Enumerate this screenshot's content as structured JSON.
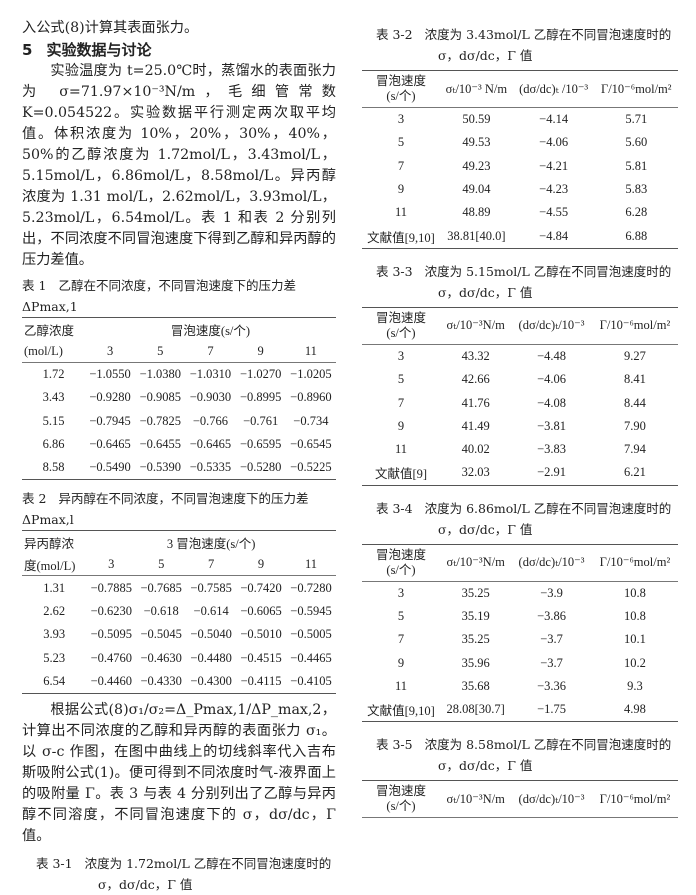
{
  "left": {
    "line1": "入公式(8)计算其表面张力。",
    "section": {
      "number": "5",
      "title": "实验数据与讨论"
    },
    "para1": "实验温度为 t=25.0℃时，蒸馏水的表面张力为 σ=71.97×10⁻³N/m，毛细管常数 K=0.054522。实验数据平行测定两次取平均值。体积浓度为 10%，20%，30%，40%，50%的乙醇浓度为 1.72mol/L，3.43mol/L，5.15mol/L，6.86mol/L，8.58mol/L。异丙醇浓度为 1.31 mol/L，2.62mol/L，3.93mol/L，5.23mol/L，6.54mol/L。表 1 和表 2 分别列出，不同浓度不同冒泡速度下得到乙醇和异丙醇的压力差值。",
    "para2": "根据公式(8)σ₁/σ₂=Δ_Pmax,1/ΔP_max,2，计算出不同浓度的乙醇和异丙醇的表面张力 σ₁。以 σ-c 作图，在图中曲线上的切线斜率代入吉布斯吸附公式(1)。便可得到不同浓度时气-液界面上的吸附量 Γ。表 3 与表 4 分别列出了乙醇与异丙醇不同溶度，不同冒泡速度下的 σ，dσ/dc，Γ 值。",
    "table1": {
      "caption_num": "表 1",
      "caption": "乙醇在不同浓度，不同冒泡速度下的压力差 ΔPmax,1",
      "row_header_1": "乙醇浓度",
      "row_header_2": "(mol/L)",
      "group_header": "冒泡速度(s/个)",
      "columns": [
        "3",
        "5",
        "7",
        "9",
        "11"
      ],
      "rows": [
        [
          "1.72",
          "−1.0550",
          "−1.0380",
          "−1.0310",
          "−1.0270",
          "−1.0205"
        ],
        [
          "3.43",
          "−0.9280",
          "−0.9085",
          "−0.9030",
          "−0.8995",
          "−0.8960"
        ],
        [
          "5.15",
          "−0.7945",
          "−0.7825",
          "−0.766",
          "−0.761",
          "−0.734"
        ],
        [
          "6.86",
          "−0.6465",
          "−0.6455",
          "−0.6465",
          "−0.6595",
          "−0.6545"
        ],
        [
          "8.58",
          "−0.5490",
          "−0.5390",
          "−0.5335",
          "−0.5280",
          "−0.5225"
        ]
      ]
    },
    "table2": {
      "caption_num": "表 2",
      "caption": "异丙醇在不同浓度，不同冒泡速度下的压力差 ΔPmax,l",
      "row_header_1": "异丙醇浓",
      "row_header_2": "度(mol/L)",
      "group_header": "3 冒泡速度(s/个)",
      "columns": [
        "3",
        "5",
        "7",
        "9",
        "11"
      ],
      "rows": [
        [
          "1.31",
          "−0.7885",
          "−0.7685",
          "−0.7585",
          "−0.7420",
          "−0.7280"
        ],
        [
          "2.62",
          "−0.6230",
          "−0.618",
          "−0.614",
          "−0.6065",
          "−0.5945"
        ],
        [
          "3.93",
          "−0.5095",
          "−0.5045",
          "−0.5040",
          "−0.5010",
          "−0.5005"
        ],
        [
          "5.23",
          "−0.4760",
          "−0.4630",
          "−0.4480",
          "−0.4515",
          "−0.4465"
        ],
        [
          "6.54",
          "−0.4460",
          "−0.4330",
          "−0.4300",
          "−0.4115",
          "−0.4105"
        ]
      ]
    },
    "table31": {
      "caption_num": "表 3-1",
      "caption": "浓度为 1.72mol/L 乙醇在不同冒泡速度时的",
      "caption_line2": "σ，dσ/dc，Γ 值"
    }
  },
  "right": {
    "tables": [
      {
        "caption_num": "表 3-2",
        "caption": "浓度为 3.43mol/L 乙醇在不同冒泡速度时的",
        "caption_line2": "σ，dσ/dc，Γ 值",
        "headers": [
          "冒泡速度\n(s/个)",
          "σₜ/10⁻³ N/m",
          "(dσ/dc)ₜ /10⁻³",
          "Γ/10⁻⁶mol/m²"
        ],
        "rows": [
          [
            "3",
            "50.59",
            "−4.14",
            "5.71"
          ],
          [
            "5",
            "49.53",
            "−4.06",
            "5.60"
          ],
          [
            "7",
            "49.23",
            "−4.21",
            "5.81"
          ],
          [
            "9",
            "49.04",
            "−4.23",
            "5.83"
          ],
          [
            "11",
            "48.89",
            "−4.55",
            "6.28"
          ],
          [
            "文献值[9,10]",
            "38.81[40.0]",
            "−4.84",
            "6.88"
          ]
        ]
      },
      {
        "caption_num": "表 3-3",
        "caption": "浓度为 5.15mol/L 乙醇在不同冒泡速度时的",
        "caption_line2": "σ，dσ/dc，Γ 值",
        "headers": [
          "冒泡速度\n(s/个)",
          "σₜ/10⁻³N/m",
          "(dσ/dc)ₜ/10⁻³",
          "Γ/10⁻⁶mol/m²"
        ],
        "rows": [
          [
            "3",
            "43.32",
            "−4.48",
            "9.27"
          ],
          [
            "5",
            "42.66",
            "−4.06",
            "8.41"
          ],
          [
            "7",
            "41.76",
            "−4.08",
            "8.44"
          ],
          [
            "9",
            "41.49",
            "−3.81",
            "7.90"
          ],
          [
            "11",
            "40.02",
            "−3.83",
            "7.94"
          ],
          [
            "文献值[9]",
            "32.03",
            "−2.91",
            "6.21"
          ]
        ]
      },
      {
        "caption_num": "表 3-4",
        "caption": "浓度为 6.86mol/L 乙醇在不同冒泡速度时的",
        "caption_line2": "σ，dσ/dc，Γ 值",
        "headers": [
          "冒泡速度\n(s/个)",
          "σₜ/10⁻³N/m",
          "(dσ/dc)ₜ/10⁻³",
          "Γ/10⁻⁶mol/m²"
        ],
        "rows": [
          [
            "3",
            "35.25",
            "−3.9",
            "10.8"
          ],
          [
            "5",
            "35.19",
            "−3.86",
            "10.8"
          ],
          [
            "7",
            "35.25",
            "−3.7",
            "10.1"
          ],
          [
            "9",
            "35.96",
            "−3.7",
            "10.2"
          ],
          [
            "11",
            "35.68",
            "−3.36",
            "9.3"
          ],
          [
            "文献值[9,10]",
            "28.08[30.7]",
            "−1.75",
            "4.98"
          ]
        ]
      },
      {
        "caption_num": "表 3-5",
        "caption": "浓度为 8.58mol/L 乙醇在不同冒泡速度时的",
        "caption_line2": "σ，dσ/dc，Γ 值",
        "headers": [
          "冒泡速度\n(s/个)",
          "σₜ/10⁻³N/m",
          "(dσ/dc)ₜ/10⁻³",
          "Γ/10⁻⁶mol/m²"
        ],
        "rows": []
      }
    ]
  }
}
